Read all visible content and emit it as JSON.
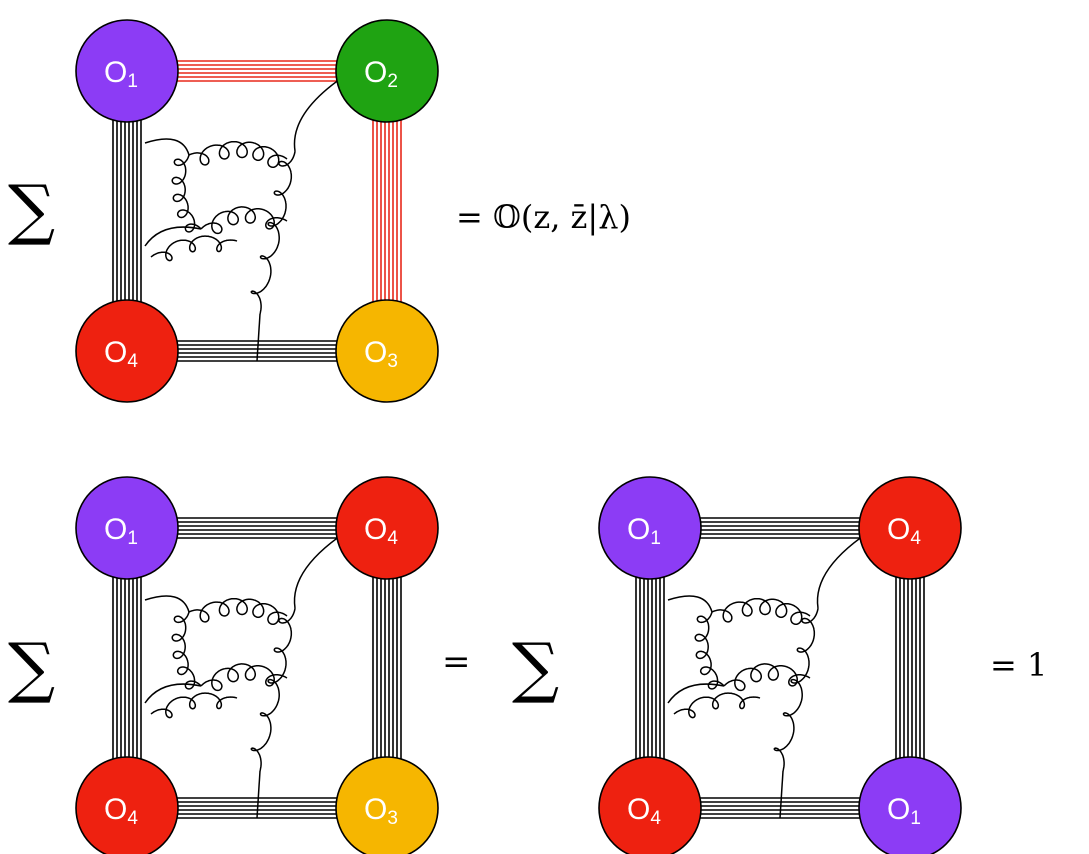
{
  "colors": {
    "purple": "#8c3cf5",
    "green": "#1fa312",
    "red": "#ee2110",
    "yellow": "#f6b600",
    "line_black": "#000000",
    "line_red": "#e8281a"
  },
  "symbols": {
    "sum": "∑",
    "equals": "="
  },
  "top": {
    "nodes": [
      {
        "label": "O",
        "sub": "1",
        "color": "purple"
      },
      {
        "label": "O",
        "sub": "2",
        "color": "green"
      },
      {
        "label": "O",
        "sub": "3",
        "color": "yellow"
      },
      {
        "label": "O",
        "sub": "4",
        "color": "red"
      }
    ],
    "result": "= 𝕆(z, z̄|λ)"
  },
  "bottom_left": {
    "nodes": [
      {
        "label": "O",
        "sub": "1",
        "color": "purple"
      },
      {
        "label": "O",
        "sub": "4",
        "color": "red"
      },
      {
        "label": "O",
        "sub": "3",
        "color": "yellow"
      },
      {
        "label": "O",
        "sub": "4",
        "color": "red"
      }
    ]
  },
  "bottom_right": {
    "nodes": [
      {
        "label": "O",
        "sub": "1",
        "color": "purple"
      },
      {
        "label": "O",
        "sub": "4",
        "color": "red"
      },
      {
        "label": "O",
        "sub": "1",
        "color": "purple"
      },
      {
        "label": "O",
        "sub": "4",
        "color": "red"
      }
    ],
    "result": "= 1"
  }
}
